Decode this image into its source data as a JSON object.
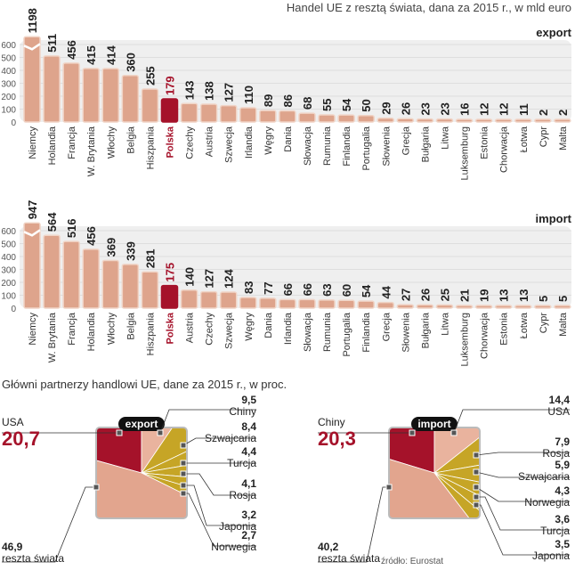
{
  "header": {
    "title": "Handel UE z resztą świata, dana za 2015 r., w mld euro"
  },
  "colors": {
    "bar": "#dea48c",
    "bar_edge": "#f0d4c6",
    "highlight": "#a5122a",
    "gold": "#c6a526",
    "rest": "#e2a58e",
    "grid_bg": "#efefef"
  },
  "chart_data": [
    {
      "type": "bar",
      "title": "export",
      "ylim": [
        0,
        600
      ],
      "yticks": [
        0,
        100,
        200,
        300,
        400,
        500,
        600
      ],
      "axis_break": "Niemcy",
      "highlight": "Polska",
      "categories": [
        "Niemcy",
        "Holandia",
        "Francja",
        "W. Brytania",
        "Włochy",
        "Belgia",
        "Hiszpania",
        "Polska",
        "Czechy",
        "Austria",
        "Szwecja",
        "Irlandia",
        "Węgry",
        "Dania",
        "Słowacja",
        "Rumunia",
        "Finlandia",
        "Portugalia",
        "Słowenia",
        "Grecja",
        "Bułgaria",
        "Litwa",
        "Luksemburg",
        "Estonia",
        "Chorwacja",
        "Łotwa",
        "Cypr",
        "Malta"
      ],
      "values": [
        1198,
        511,
        456,
        415,
        414,
        360,
        255,
        179,
        143,
        138,
        127,
        110,
        89,
        86,
        68,
        55,
        54,
        50,
        29,
        26,
        23,
        23,
        16,
        12,
        12,
        11,
        2,
        2
      ]
    },
    {
      "type": "bar",
      "title": "import",
      "ylim": [
        0,
        600
      ],
      "yticks": [
        0,
        100,
        200,
        300,
        400,
        500,
        600
      ],
      "axis_break": "Niemcy",
      "highlight": "Polska",
      "categories": [
        "Niemcy",
        "W. Brytania",
        "Francja",
        "Holandia",
        "Włochy",
        "Belgia",
        "Hiszpania",
        "Polska",
        "Austria",
        "Czechy",
        "Szwecja",
        "Węgry",
        "Dania",
        "Irlandia",
        "Słowacja",
        "Rumunia",
        "Portugalia",
        "Finlandia",
        "Grecja",
        "Słowenia",
        "Bułgaria",
        "Litwa",
        "Luksemburg",
        "Chorwacja",
        "Estonia",
        "Łotwa",
        "Cypr",
        "Malta"
      ],
      "values": [
        947,
        564,
        516,
        456,
        369,
        339,
        281,
        175,
        140,
        127,
        124,
        83,
        77,
        66,
        66,
        63,
        60,
        54,
        44,
        27,
        26,
        25,
        21,
        19,
        13,
        13,
        5,
        5
      ]
    },
    {
      "type": "pie",
      "title": "export",
      "labels": [
        "USA",
        "Chiny",
        "Szwajcaria",
        "Turcja",
        "Rosja",
        "Japonia",
        "Norwegia",
        "reszta świata"
      ],
      "values": [
        "20,7",
        "9,5",
        "8,4",
        "4,4",
        "4,1",
        "3,2",
        "2,7",
        "46,9"
      ]
    },
    {
      "type": "pie",
      "title": "import",
      "labels": [
        "Chiny",
        "USA",
        "Rosja",
        "Szwajcaria",
        "Norwegia",
        "Turcja",
        "Japonia",
        "reszta świata"
      ],
      "values": [
        "20,3",
        "14,4",
        "7,9",
        "5,9",
        "4,3",
        "3,6",
        "3,5",
        "40,2"
      ]
    }
  ],
  "pies_title": "Główni partnerzy handlowi UE, dane za 2015 r., w proc.",
  "source": "źródło: Eurostat"
}
